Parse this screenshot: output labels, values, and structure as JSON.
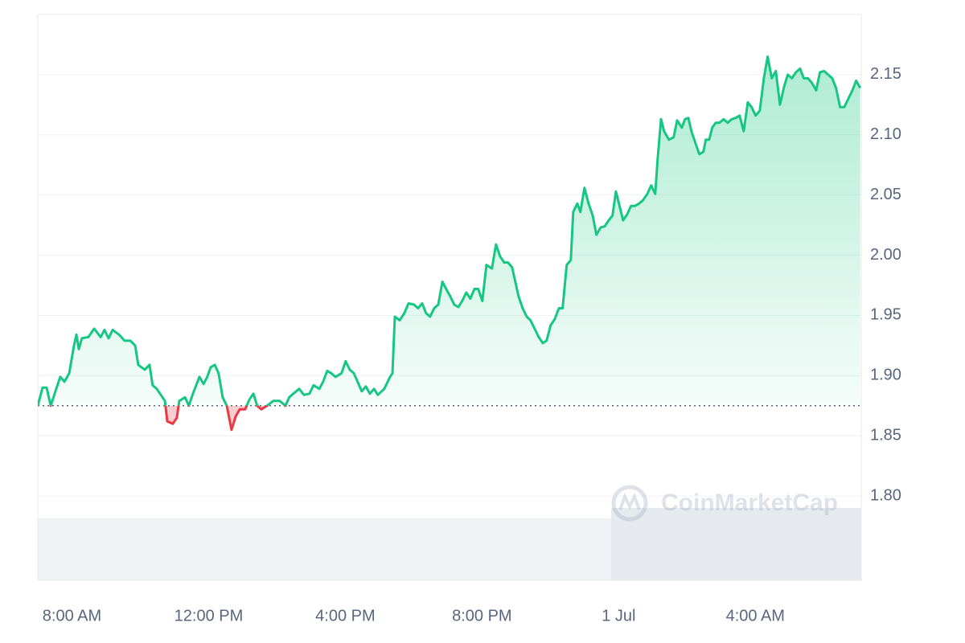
{
  "chart_data": {
    "type": "line",
    "watermark": "CoinMarketCap",
    "baseline": 1.875,
    "xlim": [
      7,
      31.1
    ],
    "xticks": [
      {
        "value": 8,
        "label": "8:00 AM"
      },
      {
        "value": 12,
        "label": "12:00 PM"
      },
      {
        "value": 16,
        "label": "4:00 PM"
      },
      {
        "value": 20,
        "label": "8:00 PM"
      },
      {
        "value": 24,
        "label": "1 Jul"
      },
      {
        "value": 28,
        "label": "4:00 AM"
      }
    ],
    "ylim": [
      1.73,
      2.2
    ],
    "yticks": [
      {
        "value": 1.8,
        "label": "1.80"
      },
      1.85,
      {
        "value": 1.9,
        "label": "1.90"
      },
      1.95,
      {
        "value": 2.0,
        "label": "2.00"
      },
      2.05,
      {
        "value": 2.1,
        "label": "2.10"
      },
      2.15
    ],
    "grid": true,
    "up_color": "#16c784",
    "down_color": "#ea3943",
    "x": [
      7.0,
      7.14,
      7.26,
      7.38,
      7.54,
      7.66,
      7.78,
      7.92,
      8.06,
      8.13,
      8.2,
      8.29,
      8.48,
      8.65,
      8.84,
      8.95,
      9.07,
      9.19,
      9.38,
      9.54,
      9.71,
      9.85,
      9.94,
      10.13,
      10.27,
      10.36,
      10.48,
      10.6,
      10.72,
      10.79,
      10.95,
      11.07,
      11.14,
      11.31,
      11.42,
      11.54,
      11.73,
      11.85,
      11.96,
      12.06,
      12.18,
      12.29,
      12.41,
      12.53,
      12.67,
      12.79,
      12.91,
      13.07,
      13.19,
      13.31,
      13.42,
      13.54,
      13.71,
      13.89,
      14.08,
      14.25,
      14.36,
      14.48,
      14.65,
      14.79,
      14.95,
      15.07,
      15.24,
      15.35,
      15.47,
      15.59,
      15.71,
      15.89,
      16.01,
      16.13,
      16.25,
      16.36,
      16.48,
      16.6,
      16.72,
      16.84,
      16.95,
      17.14,
      17.31,
      17.38,
      17.45,
      17.59,
      17.73,
      17.85,
      18.01,
      18.13,
      18.25,
      18.36,
      18.48,
      18.6,
      18.72,
      18.84,
      18.95,
      19.07,
      19.19,
      19.31,
      19.42,
      19.54,
      19.66,
      19.78,
      19.89,
      20.01,
      20.13,
      20.29,
      20.41,
      20.53,
      20.65,
      20.76,
      20.88,
      21.07,
      21.19,
      21.31,
      21.42,
      21.54,
      21.66,
      21.78,
      21.89,
      22.01,
      22.13,
      22.25,
      22.36,
      22.48,
      22.6,
      22.67,
      22.79,
      22.88,
      23.0,
      23.12,
      23.24,
      23.35,
      23.47,
      23.59,
      23.71,
      23.82,
      23.92,
      24.01,
      24.13,
      24.25,
      24.36,
      24.48,
      24.6,
      24.72,
      24.84,
      24.95,
      25.07,
      25.14,
      25.24,
      25.33,
      25.47,
      25.61,
      25.71,
      25.85,
      25.94,
      26.04,
      26.13,
      26.25,
      26.36,
      26.48,
      26.55,
      26.65,
      26.74,
      26.84,
      26.95,
      27.07,
      27.19,
      27.31,
      27.42,
      27.54,
      27.66,
      27.78,
      27.89,
      28.01,
      28.13,
      28.25,
      28.36,
      28.48,
      28.6,
      28.72,
      28.84,
      28.95,
      29.07,
      29.19,
      29.31,
      29.42,
      29.54,
      29.66,
      29.78,
      29.89,
      30.01,
      30.13,
      30.25,
      30.36,
      30.48,
      30.6,
      30.72,
      30.84,
      30.95,
      31.07
    ],
    "values": [
      1.875,
      1.89,
      1.89,
      1.875,
      1.889,
      1.899,
      1.895,
      1.902,
      1.925,
      1.934,
      1.922,
      1.931,
      1.932,
      1.939,
      1.932,
      1.938,
      1.931,
      1.938,
      1.934,
      1.929,
      1.929,
      1.925,
      1.909,
      1.905,
      1.909,
      1.892,
      1.889,
      1.884,
      1.879,
      1.862,
      1.86,
      1.865,
      1.879,
      1.882,
      1.875,
      1.885,
      1.899,
      1.893,
      1.899,
      1.907,
      1.909,
      1.902,
      1.882,
      1.875,
      1.855,
      1.866,
      1.872,
      1.872,
      1.88,
      1.885,
      1.875,
      1.872,
      1.875,
      1.879,
      1.879,
      1.875,
      1.882,
      1.885,
      1.889,
      1.884,
      1.885,
      1.892,
      1.889,
      1.895,
      1.904,
      1.902,
      1.899,
      1.902,
      1.912,
      1.905,
      1.902,
      1.895,
      1.887,
      1.891,
      1.885,
      1.889,
      1.884,
      1.889,
      1.899,
      1.902,
      1.949,
      1.946,
      1.952,
      1.96,
      1.959,
      1.956,
      1.96,
      1.952,
      1.949,
      1.956,
      1.959,
      1.978,
      1.972,
      1.966,
      1.959,
      1.957,
      1.962,
      1.969,
      1.964,
      1.972,
      1.972,
      1.962,
      1.992,
      1.989,
      2.009,
      1.999,
      1.994,
      1.994,
      1.99,
      1.966,
      1.956,
      1.949,
      1.946,
      1.939,
      1.932,
      1.927,
      1.929,
      1.942,
      1.947,
      1.956,
      1.956,
      1.992,
      1.996,
      2.036,
      2.043,
      2.036,
      2.056,
      2.043,
      2.033,
      2.017,
      2.023,
      2.024,
      2.029,
      2.033,
      2.053,
      2.043,
      2.029,
      2.034,
      2.041,
      2.041,
      2.043,
      2.046,
      2.051,
      2.058,
      2.051,
      2.08,
      2.113,
      2.103,
      2.096,
      2.098,
      2.112,
      2.106,
      2.113,
      2.114,
      2.103,
      2.093,
      2.084,
      2.086,
      2.096,
      2.096,
      2.106,
      2.11,
      2.11,
      2.113,
      2.11,
      2.113,
      2.114,
      2.116,
      2.103,
      2.127,
      2.123,
      2.116,
      2.12,
      2.147,
      2.165,
      2.147,
      2.153,
      2.125,
      2.14,
      2.15,
      2.147,
      2.152,
      2.155,
      2.147,
      2.147,
      2.143,
      2.137,
      2.152,
      2.153,
      2.15,
      2.147,
      2.139,
      2.123,
      2.123,
      2.13,
      2.137,
      2.145,
      2.139
    ]
  }
}
